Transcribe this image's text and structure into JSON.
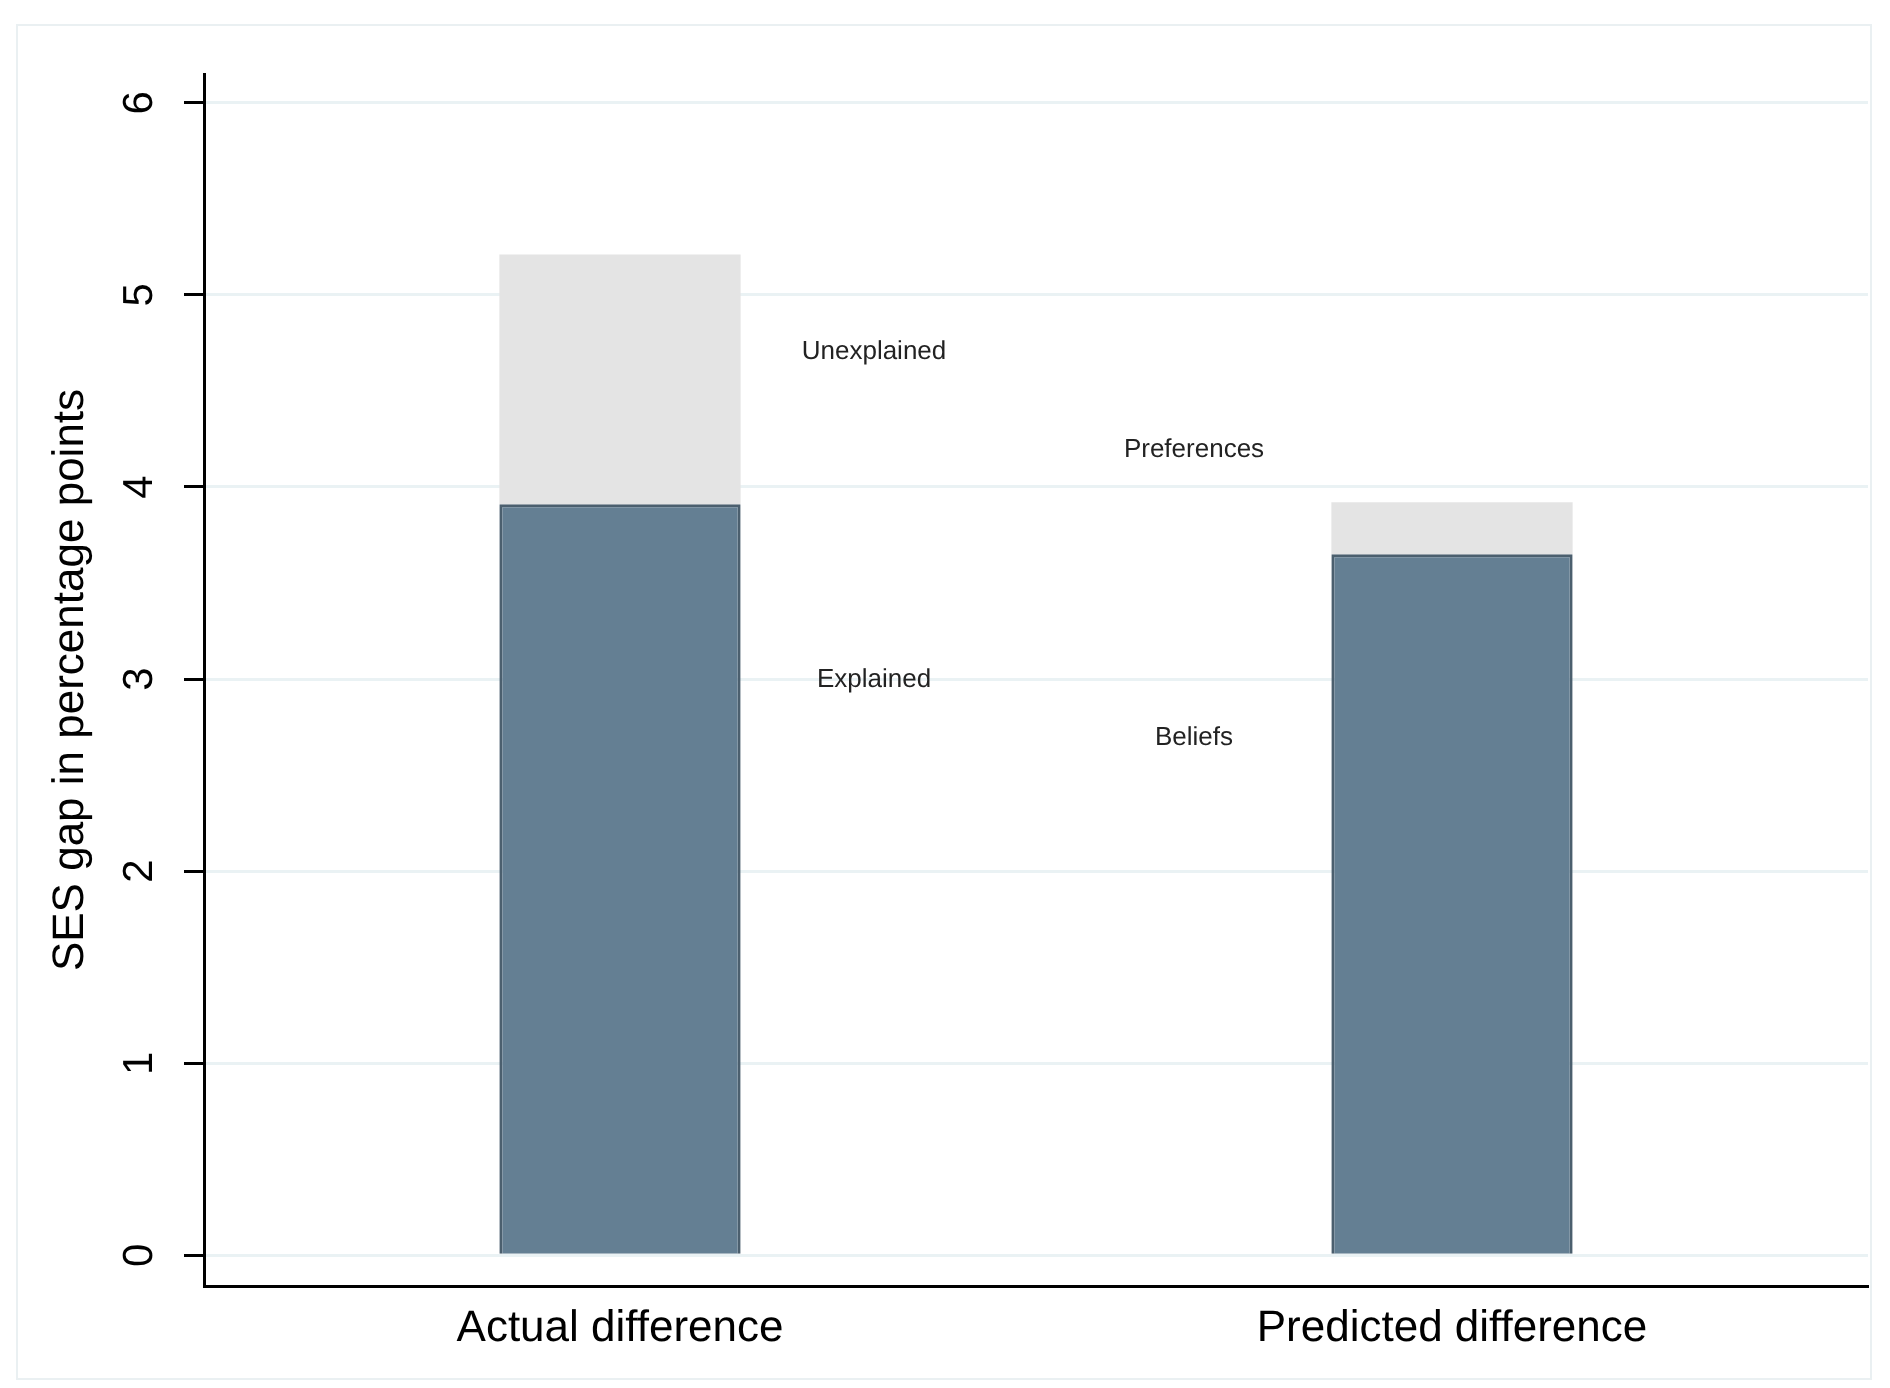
{
  "chart_data": {
    "type": "bar",
    "stacked": true,
    "ylabel": "SES gap in percentage points",
    "categories": [
      "Actual difference",
      "Predicted difference"
    ],
    "series": [
      {
        "color": "#647f93",
        "values": [
          3.91,
          3.65
        ]
      },
      {
        "color": "#e4e4e4",
        "values": [
          1.3,
          0.27
        ]
      }
    ],
    "ylim": [
      -0.16,
      6.15
    ],
    "yticks": [
      0,
      1,
      2,
      3,
      4,
      5,
      6
    ],
    "grid": "y",
    "legend": false,
    "annotations": [
      "Unexplained",
      "Explained",
      "Preferences",
      "Beliefs"
    ]
  }
}
